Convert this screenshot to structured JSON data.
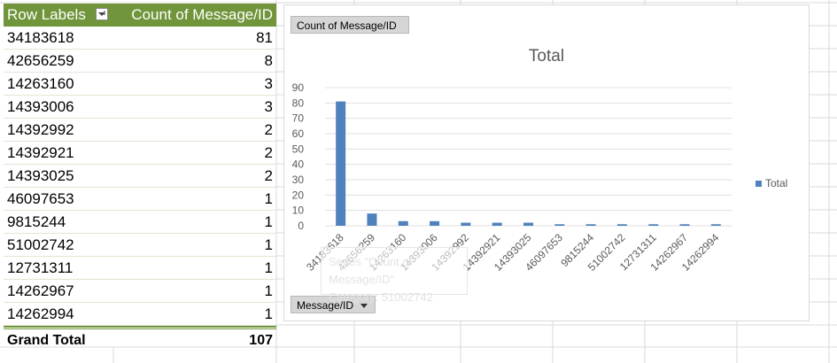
{
  "pivot": {
    "row_header": "Row Labels",
    "value_header": "Count of Message/ID",
    "rows": [
      {
        "label": "34183618",
        "value": "81"
      },
      {
        "label": "42656259",
        "value": "8"
      },
      {
        "label": "14263160",
        "value": "3"
      },
      {
        "label": "14393006",
        "value": "3"
      },
      {
        "label": "14392992",
        "value": "2"
      },
      {
        "label": "14392921",
        "value": "2"
      },
      {
        "label": "14393025",
        "value": "2"
      },
      {
        "label": "46097653",
        "value": "1"
      },
      {
        "label": "9815244",
        "value": "1"
      },
      {
        "label": "51002742",
        "value": "1"
      },
      {
        "label": "12731311",
        "value": "1"
      },
      {
        "label": "14262967",
        "value": "1"
      },
      {
        "label": "14262994",
        "value": "1"
      }
    ],
    "total_label": "Grand Total",
    "total_value": "107"
  },
  "chart": {
    "value_field_button": "Count of Message/ID",
    "axis_field_button": "Message/ID",
    "tooltip_ghost": {
      "line1": "Series \"Count of Message/ID\"",
      "line2": "Category: 51002742"
    }
  },
  "colors": {
    "header_green": "#70953a",
    "bar_blue": "#4f81bd"
  },
  "chart_data": {
    "type": "bar",
    "title": "Total",
    "categories": [
      "34183618",
      "42656259",
      "14263160",
      "14393006",
      "14392992",
      "14392921",
      "14393025",
      "46097653",
      "9815244",
      "51002742",
      "12731311",
      "14262967",
      "14262994"
    ],
    "series": [
      {
        "name": "Total",
        "values": [
          81,
          8,
          3,
          3,
          2,
          2,
          2,
          1,
          1,
          1,
          1,
          1,
          1
        ]
      }
    ],
    "ylim": [
      0,
      90
    ],
    "yticks": [
      0,
      10,
      20,
      30,
      40,
      50,
      60,
      70,
      80,
      90
    ],
    "grid": true,
    "legend": "right"
  }
}
